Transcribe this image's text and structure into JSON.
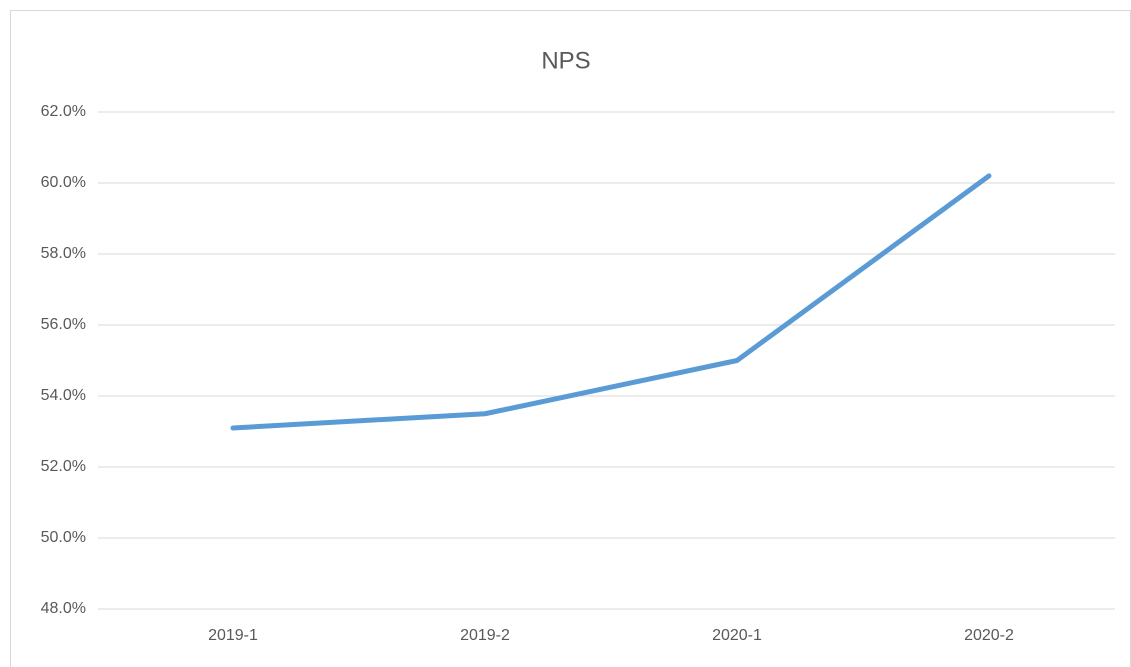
{
  "chart_data": {
    "type": "line",
    "title": "NPS",
    "categories": [
      "2019-1",
      "2019-2",
      "2020-1",
      "2020-2"
    ],
    "series": [
      {
        "name": "NPS",
        "color": "#5b9bd5",
        "values": [
          53.1,
          53.5,
          55.0,
          60.2
        ]
      }
    ],
    "ylim": [
      48,
      62
    ],
    "yticks": [
      {
        "value": 48,
        "label": "48.0%"
      },
      {
        "value": 50,
        "label": "50.0%"
      },
      {
        "value": 52,
        "label": "52.0%"
      },
      {
        "value": 54,
        "label": "54.0%"
      },
      {
        "value": 56,
        "label": "56.0%"
      },
      {
        "value": 58,
        "label": "58.0%"
      },
      {
        "value": 60,
        "label": "60.0%"
      },
      {
        "value": 62,
        "label": "62.0%"
      }
    ],
    "grid": true
  }
}
